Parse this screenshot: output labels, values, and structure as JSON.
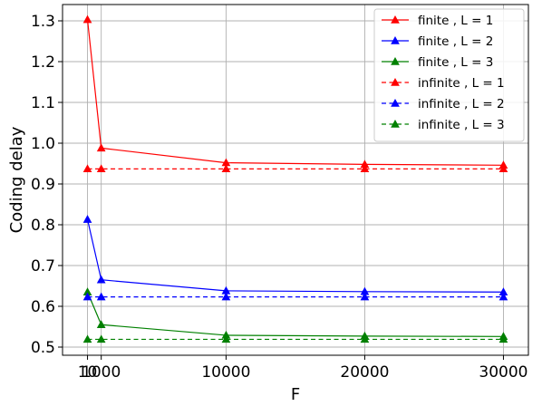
{
  "chart_data": {
    "type": "line",
    "xlabel": "F",
    "ylabel": "Coding delay",
    "x_categories": [
      "10",
      "1000",
      "10000",
      "20000",
      "30000"
    ],
    "x_values": [
      10,
      1000,
      10000,
      20000,
      30000
    ],
    "ylim": [
      0.48,
      1.34
    ],
    "yticks": [
      0.5,
      0.6,
      0.7,
      0.8,
      0.9,
      1.0,
      1.1,
      1.2,
      1.3
    ],
    "ytick_labels": [
      "0.5",
      "0.6",
      "0.7",
      "0.8",
      "0.9",
      "1.0",
      "1.1",
      "1.2",
      "1.3"
    ],
    "grid": true,
    "legend_position": "top-right",
    "series": [
      {
        "name": "finite , L = 1",
        "color": "#ff0000",
        "dash": "solid",
        "marker": "triangle",
        "values": [
          1.303,
          0.988,
          0.952,
          0.948,
          0.946
        ]
      },
      {
        "name": "finite , L = 2",
        "color": "#0000ff",
        "dash": "solid",
        "marker": "triangle",
        "values": [
          0.813,
          0.665,
          0.638,
          0.636,
          0.635
        ]
      },
      {
        "name": "finite , L = 3",
        "color": "#008000",
        "dash": "solid",
        "marker": "triangle",
        "values": [
          0.635,
          0.555,
          0.529,
          0.527,
          0.526
        ]
      },
      {
        "name": "infinite , L = 1",
        "color": "#ff0000",
        "dash": "dashed",
        "marker": "triangle",
        "values": [
          0.937,
          0.937,
          0.937,
          0.937,
          0.937
        ]
      },
      {
        "name": "infinite , L = 2",
        "color": "#0000ff",
        "dash": "dashed",
        "marker": "triangle",
        "values": [
          0.623,
          0.623,
          0.623,
          0.623,
          0.623
        ]
      },
      {
        "name": "infinite , L = 3",
        "color": "#008000",
        "dash": "dashed",
        "marker": "triangle",
        "values": [
          0.519,
          0.519,
          0.519,
          0.519,
          0.519
        ]
      }
    ]
  }
}
